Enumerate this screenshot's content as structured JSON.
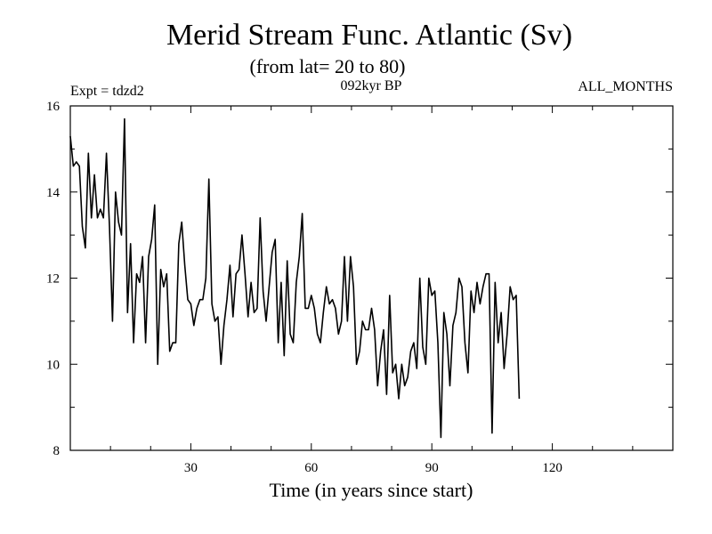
{
  "chart_data": {
    "type": "line",
    "title": "Merid Stream Func. Atlantic (Sv)",
    "subtitle": "(from lat= 20 to 80)",
    "left_note": "Expt = tdzd2",
    "center_note": "092kyr BP",
    "right_note": "ALL_MONTHS",
    "xlabel": "Time (in years since start)",
    "ylabel": "",
    "xlim": [
      0,
      150
    ],
    "ylim": [
      8,
      16
    ],
    "x_ticks": [
      30,
      60,
      90,
      120
    ],
    "y_ticks": [
      8,
      10,
      12,
      14,
      16
    ],
    "x_tick_labels": [
      "30",
      "60",
      "90",
      "120"
    ],
    "y_tick_labels": [
      "8",
      "10",
      "12",
      "14",
      "16"
    ],
    "grid": false,
    "series": [
      {
        "name": "Merid Stream Func. Atlantic",
        "x_start": 0,
        "x_step": 0.75,
        "values": [
          15.3,
          14.6,
          14.7,
          14.6,
          13.2,
          12.7,
          14.9,
          13.4,
          14.4,
          13.4,
          13.6,
          13.4,
          14.9,
          13.2,
          11.0,
          14.0,
          13.3,
          13.0,
          15.7,
          11.2,
          12.8,
          10.5,
          12.1,
          11.9,
          12.5,
          10.5,
          12.5,
          12.9,
          13.7,
          10.0,
          12.2,
          11.8,
          12.1,
          10.3,
          10.5,
          10.5,
          12.8,
          13.3,
          12.3,
          11.5,
          11.4,
          10.9,
          11.3,
          11.5,
          11.5,
          12.0,
          14.3,
          11.4,
          11.0,
          11.1,
          10.0,
          10.9,
          11.5,
          12.3,
          11.1,
          12.1,
          12.2,
          13.0,
          12.1,
          11.1,
          11.9,
          11.2,
          11.3,
          13.4,
          11.7,
          11.0,
          11.8,
          12.6,
          12.9,
          10.5,
          11.9,
          10.2,
          12.4,
          10.7,
          10.5,
          11.9,
          12.5,
          13.5,
          11.3,
          11.3,
          11.6,
          11.3,
          10.7,
          10.5,
          11.2,
          11.8,
          11.4,
          11.5,
          11.3,
          10.7,
          11.0,
          12.5,
          11.0,
          12.5,
          11.8,
          10.0,
          10.3,
          11.0,
          10.8,
          10.8,
          11.3,
          10.8,
          9.5,
          10.3,
          10.8,
          9.3,
          11.6,
          9.8,
          10.0,
          9.2,
          10.0,
          9.5,
          9.7,
          10.3,
          10.5,
          9.9,
          12.0,
          10.4,
          10.0,
          12.0,
          11.6,
          11.7,
          10.5,
          8.3,
          11.2,
          10.7,
          9.5,
          10.9,
          11.2,
          12.0,
          11.8,
          10.5,
          9.8,
          11.7,
          11.2,
          11.9,
          11.4,
          11.8,
          12.1,
          12.1,
          8.4,
          11.9,
          10.5,
          11.2,
          9.9,
          10.7,
          11.8,
          11.5,
          11.6,
          9.2
        ]
      }
    ]
  }
}
